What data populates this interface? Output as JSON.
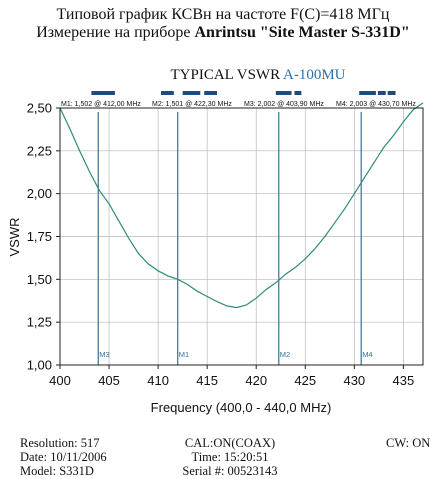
{
  "header": {
    "line1": "Типовой график КСВн на частоте F(C)=418 МГц",
    "line2_prefix": "Измерение на приборе ",
    "line2_device": "Anrintsu \"Site Master S-331D\""
  },
  "chart_data": {
    "type": "line",
    "title_main": "TYPICAL VSWR ",
    "title_model": "A-100MU",
    "xlabel": "Frequency (400,0 - 440,0 MHz)",
    "ylabel": "VSWR",
    "xlim": [
      400,
      437
    ],
    "ylim": [
      1.0,
      2.5
    ],
    "x_ticks": [
      "400",
      "405",
      "410",
      "415",
      "420",
      "425",
      "430",
      "435"
    ],
    "x_tick_values": [
      400,
      405,
      410,
      415,
      420,
      425,
      430,
      435
    ],
    "y_ticks": [
      "1,00",
      "1,25",
      "1,50",
      "1,75",
      "2,00",
      "2,25",
      "2,50"
    ],
    "y_tick_values": [
      1.0,
      1.25,
      1.5,
      1.75,
      2.0,
      2.25,
      2.5
    ],
    "grid": true,
    "line_color": "#2e8b7a",
    "marker_color": "#3b6f96",
    "band_color": "#1f4a7a",
    "series": [
      {
        "x": [
          400,
          401,
          402,
          403,
          404,
          405,
          406,
          407,
          408,
          409,
          410,
          411,
          412,
          413,
          414,
          415,
          416,
          417,
          418,
          419,
          420,
          421,
          422,
          423,
          424,
          425,
          426,
          427,
          428,
          429,
          430,
          431,
          432,
          433,
          434,
          435,
          436,
          437
        ],
        "y": [
          2.5,
          2.38,
          2.25,
          2.13,
          2.02,
          1.94,
          1.84,
          1.74,
          1.65,
          1.59,
          1.55,
          1.52,
          1.5,
          1.47,
          1.43,
          1.4,
          1.37,
          1.345,
          1.335,
          1.35,
          1.39,
          1.44,
          1.48,
          1.53,
          1.57,
          1.62,
          1.68,
          1.75,
          1.83,
          1.91,
          2.0,
          2.09,
          2.18,
          2.27,
          2.34,
          2.42,
          2.49,
          2.54
        ]
      }
    ],
    "markers": [
      {
        "label": "M1",
        "x": 412.0,
        "readout": "M1: 1,502  @ 412,00 MHz"
      },
      {
        "label": "M2",
        "x": 422.3,
        "readout": "M2: 1,501  @ 422,30 MHz"
      },
      {
        "label": "M3",
        "x": 403.9,
        "readout": "M3: 2,002  @ 403,90 MHz"
      },
      {
        "label": "M4",
        "x": 430.7,
        "readout": "M4: 2,003  @ 430,70 MHz"
      }
    ],
    "top_band_segments": [
      [
        403.2,
        405.6
      ],
      [
        410.3,
        411.6
      ],
      [
        412.5,
        414.3
      ],
      [
        414.7,
        416.0
      ],
      [
        422.0,
        423.6
      ],
      [
        423.9,
        424.6
      ],
      [
        430.5,
        432.2
      ],
      [
        432.4,
        433.2
      ],
      [
        433.4,
        434.2
      ]
    ]
  },
  "footer": {
    "resolution": "Resolution:  517",
    "date": "Date: 10/11/2006",
    "model": "Model: S331D",
    "cal": "CAL:ON(COAX)",
    "time": "Time: 15:20:51",
    "serial": "Serial #: 00523143",
    "cw": "CW: ON"
  }
}
